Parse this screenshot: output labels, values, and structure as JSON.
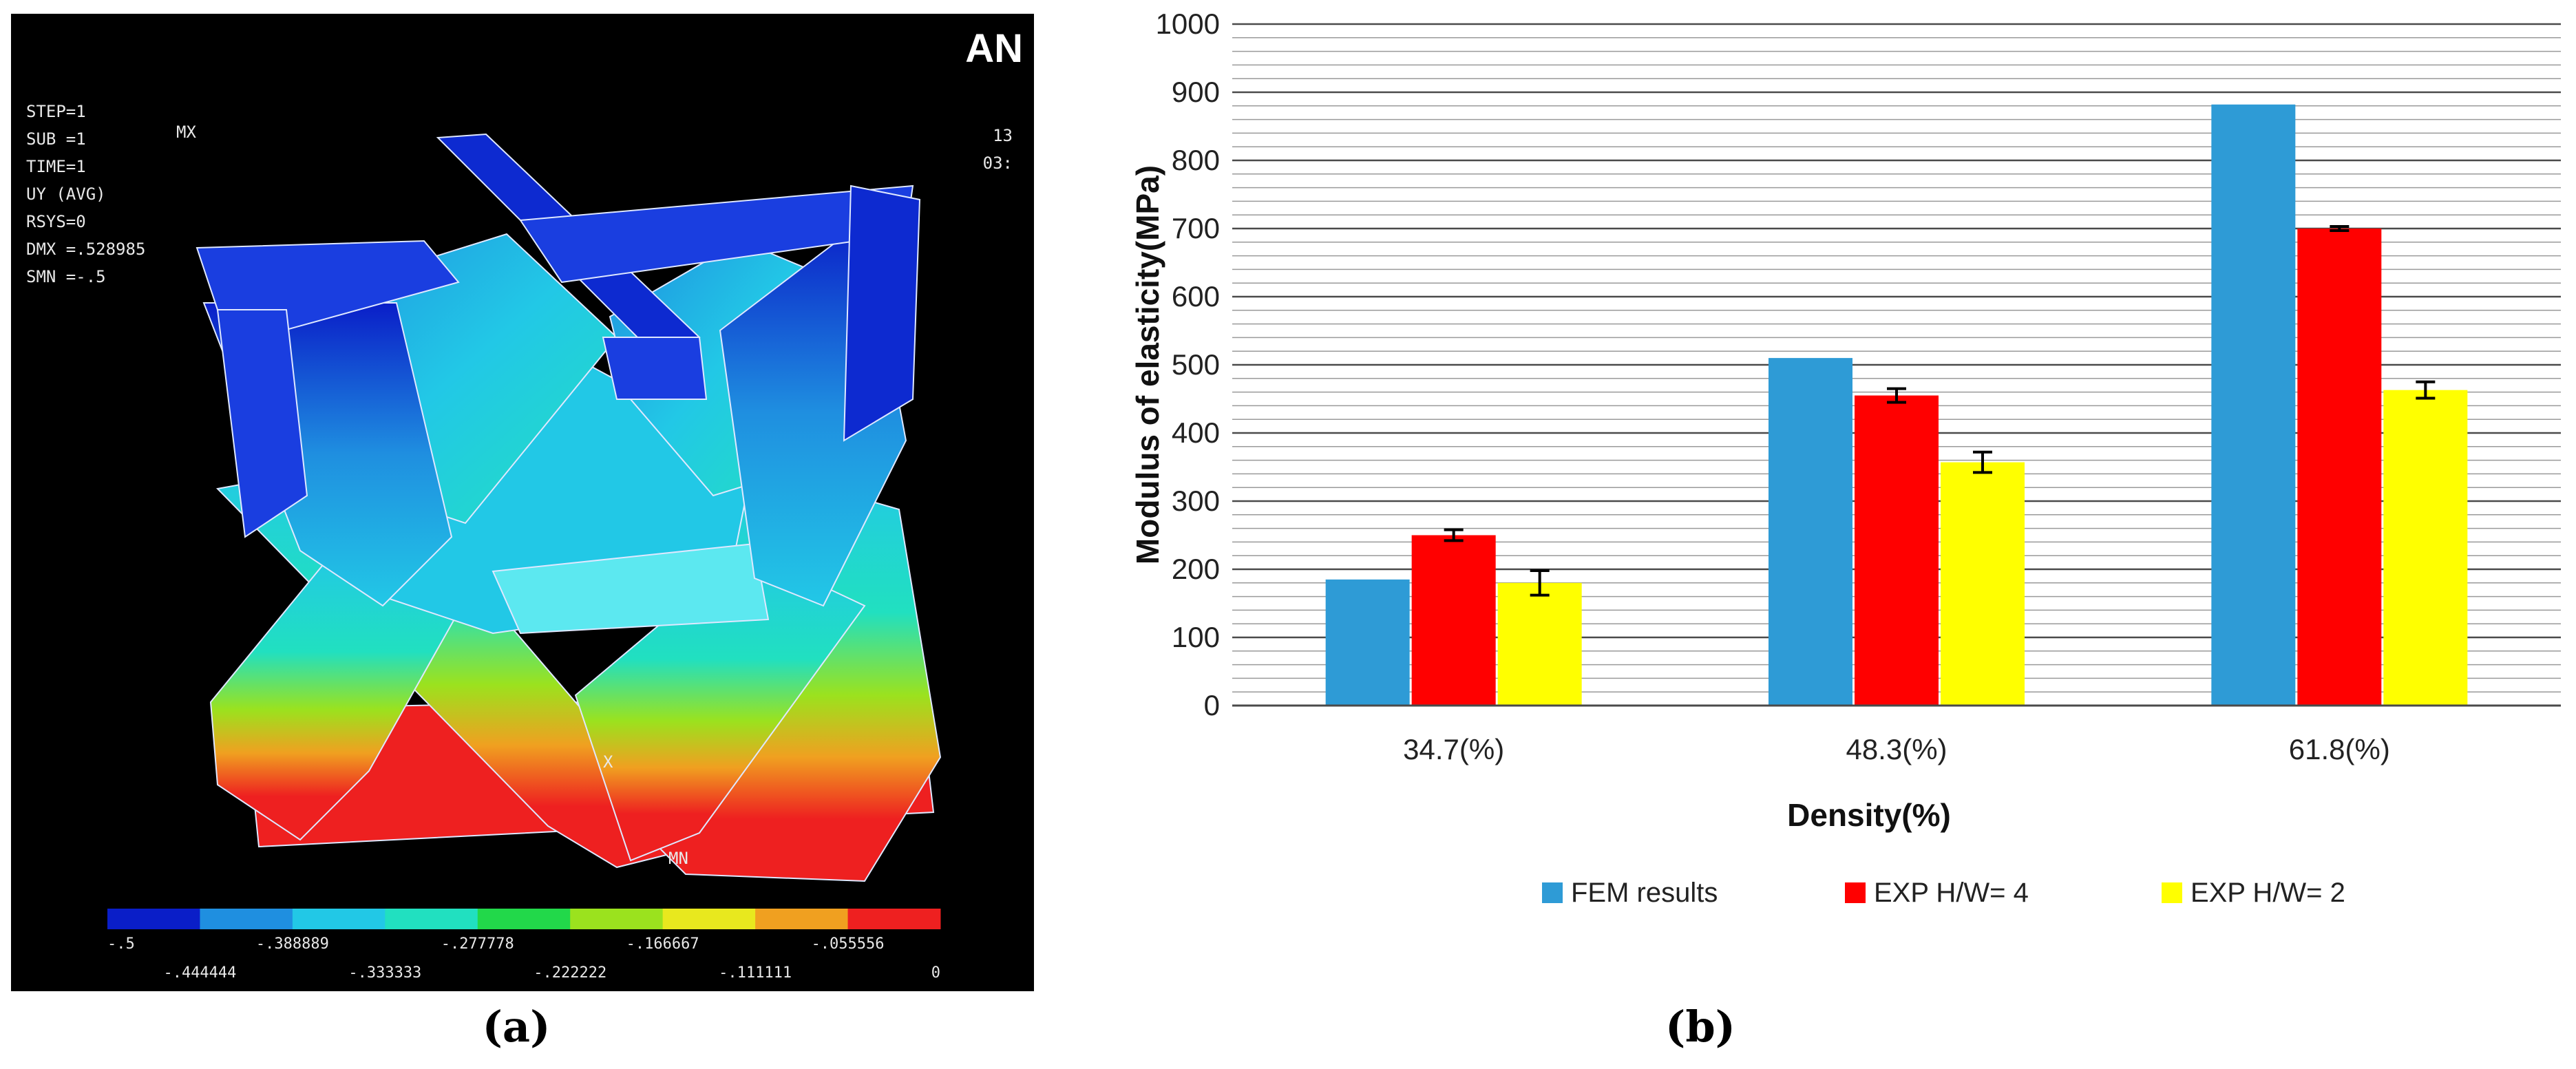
{
  "panel_a": {
    "caption": "(a)",
    "corner_logo": "AN",
    "info_lines": [
      "STEP=1",
      "SUB =1",
      "TIME=1",
      "UY       (AVG)",
      "RSYS=0",
      "DMX =.528985",
      "SMN =-.5"
    ],
    "right_fragments": [
      "13",
      "03:"
    ],
    "node_labels": [
      "MX",
      "MN"
    ],
    "axis_label": "X",
    "colorbar": {
      "colors": [
        "#0a1ec8",
        "#1f8fe0",
        "#22c8e6",
        "#21e0c0",
        "#22d84a",
        "#9be21e",
        "#e8e81e",
        "#f0a020",
        "#ee2020"
      ],
      "labels_top": [
        "-.5",
        "-.388889",
        "-.277778",
        "-.166667",
        "-.055556"
      ],
      "labels_bottom": [
        "-.444444",
        "-.333333",
        "-.222222",
        "-.111111",
        "0"
      ]
    }
  },
  "panel_b": {
    "caption": "(b)"
  },
  "chart_data": {
    "type": "bar",
    "title": "",
    "xlabel": "Density(%)",
    "ylabel": "Modulus of elasticity(MPa)",
    "ylim": [
      0,
      1000
    ],
    "yticks": [
      "0",
      "100",
      "200",
      "300",
      "400",
      "500",
      "600",
      "700",
      "800",
      "900",
      "1000"
    ],
    "minor_grid_step": 20,
    "legend_position": "bottom",
    "categories": [
      "34.7(%)",
      "48.3(%)",
      "61.8(%)"
    ],
    "series": [
      {
        "name": "FEM results",
        "color": "#2e9bd6",
        "values": [
          185,
          510,
          882
        ],
        "errors": [
          null,
          null,
          null
        ]
      },
      {
        "name": "EXP H/W= 4",
        "color": "#ff0000",
        "values": [
          250,
          455,
          700
        ],
        "errors": [
          8,
          10,
          3
        ]
      },
      {
        "name": "EXP H/W= 2",
        "color": "#ffff00",
        "values": [
          180,
          357,
          463
        ],
        "errors": [
          18,
          15,
          12
        ]
      }
    ]
  }
}
